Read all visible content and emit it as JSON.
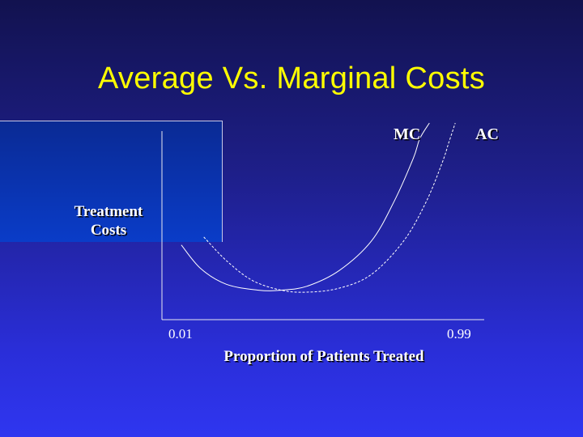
{
  "slide": {
    "title": "Average Vs. Marginal Costs"
  },
  "chart_data": {
    "type": "line",
    "title": "Average Vs. Marginal Costs",
    "ylabel_lines": [
      "Treatment",
      "Costs"
    ],
    "xlabel": "Proportion of Patients Treated",
    "x_tick_labels": [
      "0.01",
      "0.99"
    ],
    "xlim": [
      0.01,
      0.99
    ],
    "grid": false,
    "series": [
      {
        "name": "MC",
        "style": "solid",
        "color": "#ffffff",
        "x": [
          0.06,
          0.12,
          0.2,
          0.3,
          0.37,
          0.45,
          0.55,
          0.65,
          0.72,
          0.78,
          0.8,
          0.83
        ],
        "y": [
          0.38,
          0.26,
          0.18,
          0.15,
          0.15,
          0.17,
          0.25,
          0.4,
          0.6,
          0.82,
          0.92,
          1.0
        ]
      },
      {
        "name": "AC",
        "style": "dashed",
        "color": "#ffffff",
        "x": [
          0.13,
          0.2,
          0.28,
          0.37,
          0.45,
          0.55,
          0.65,
          0.75,
          0.82,
          0.87,
          0.89,
          0.91
        ],
        "y": [
          0.42,
          0.3,
          0.2,
          0.15,
          0.14,
          0.16,
          0.23,
          0.4,
          0.6,
          0.8,
          0.9,
          1.0
        ]
      }
    ]
  }
}
